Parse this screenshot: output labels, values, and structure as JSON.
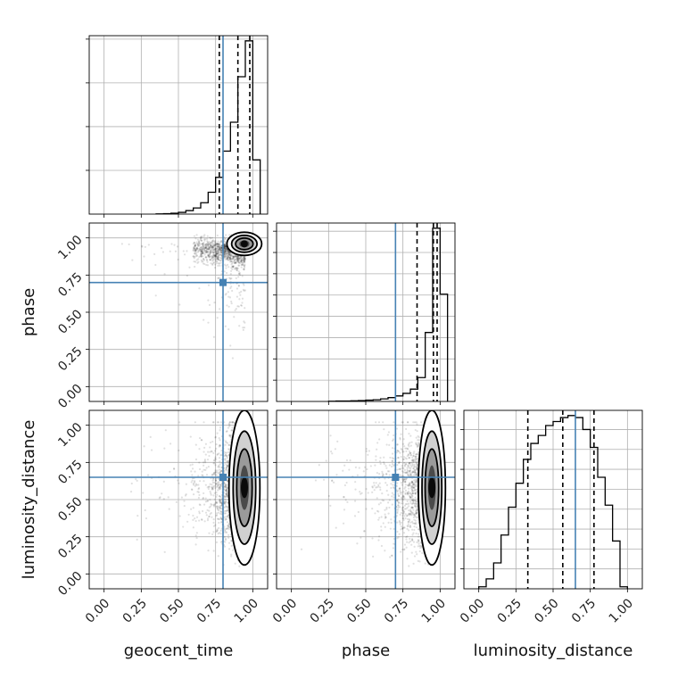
{
  "chart_data": {
    "type": "corner",
    "parameters": [
      "geocent_time",
      "phase",
      "luminosity_distance"
    ],
    "axis_range": [
      -0.1,
      1.1
    ],
    "tick_labels": [
      "0.00",
      "0.25",
      "0.50",
      "0.75",
      "1.00"
    ],
    "truth_color": "#4682b4",
    "histogram_color": "#000000",
    "grid": true,
    "truths": {
      "geocent_time": 0.8,
      "phase": 0.7,
      "luminosity_distance": 0.65
    },
    "marginals": [
      {
        "parameter": "geocent_time",
        "bin_edges": [
          0.35,
          0.4,
          0.45,
          0.5,
          0.55,
          0.6,
          0.65,
          0.7,
          0.75,
          0.8,
          0.85,
          0.9,
          0.95,
          1.0,
          1.05
        ],
        "counts": [
          0.002,
          0.005,
          0.01,
          0.02,
          0.04,
          0.07,
          0.13,
          0.25,
          0.42,
          0.72,
          1.05,
          1.57,
          1.98,
          0.62
        ],
        "quantiles": [
          0.775,
          0.9,
          0.98
        ]
      },
      {
        "parameter": "phase",
        "bin_edges": [
          0.25,
          0.3,
          0.35,
          0.4,
          0.45,
          0.5,
          0.55,
          0.6,
          0.65,
          0.7,
          0.75,
          0.8,
          0.85,
          0.9,
          0.95,
          1.0,
          1.05
        ],
        "counts": [
          0.005,
          0.01,
          0.01,
          0.015,
          0.02,
          0.03,
          0.04,
          0.06,
          0.09,
          0.13,
          0.19,
          0.29,
          0.56,
          1.62,
          4.07,
          2.52
        ],
        "quantiles": [
          0.845,
          0.955,
          0.98
        ]
      },
      {
        "parameter": "luminosity_distance",
        "bin_edges": [
          0.0,
          0.05,
          0.1,
          0.15,
          0.2,
          0.25,
          0.3,
          0.35,
          0.4,
          0.45,
          0.5,
          0.55,
          0.6,
          0.65,
          0.7,
          0.75,
          0.8,
          0.85,
          0.9,
          0.95,
          1.0
        ],
        "counts": [
          0.01,
          0.05,
          0.13,
          0.27,
          0.41,
          0.53,
          0.65,
          0.73,
          0.77,
          0.82,
          0.84,
          0.86,
          0.87,
          0.86,
          0.8,
          0.71,
          0.56,
          0.42,
          0.24,
          0.01
        ],
        "quantiles": [
          0.33,
          0.565,
          0.775
        ]
      }
    ],
    "joint": [
      {
        "x": "geocent_time",
        "y": "phase",
        "peak": [
          0.95,
          0.96
        ],
        "spread": [
          0.045,
          0.03
        ]
      },
      {
        "x": "geocent_time",
        "y": "luminosity_distance",
        "peak": [
          0.95,
          0.58
        ],
        "spread": [
          0.04,
          0.2
        ]
      },
      {
        "x": "phase",
        "y": "luminosity_distance",
        "peak": [
          0.95,
          0.58
        ],
        "spread": [
          0.035,
          0.2
        ]
      }
    ]
  }
}
